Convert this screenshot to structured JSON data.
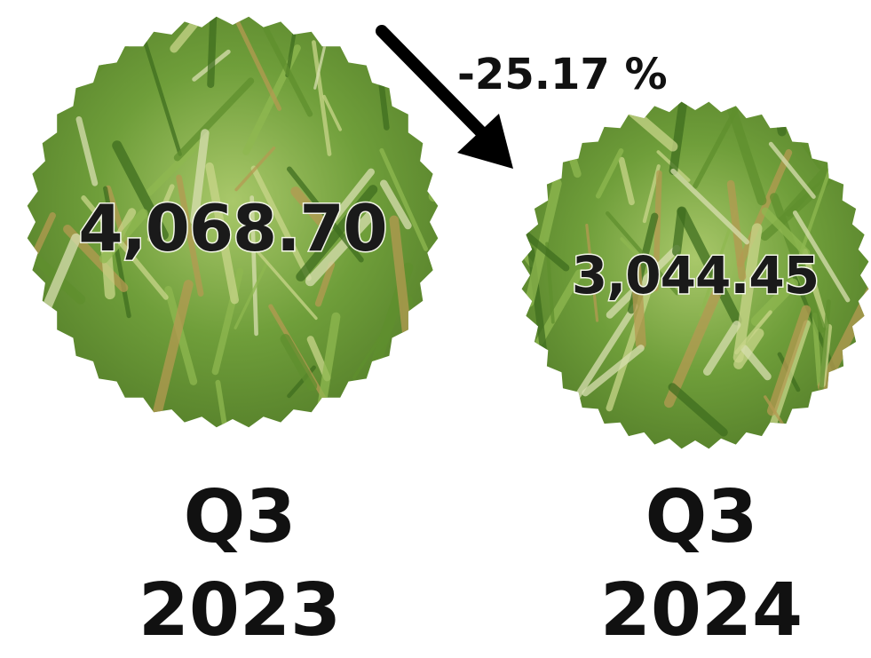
{
  "change": "-25.17 %",
  "items": [
    {
      "value": "4,068.70",
      "quarter": "Q3",
      "year": "2023"
    },
    {
      "value": "3,044.45",
      "quarter": "Q3",
      "year": "2024"
    }
  ]
}
